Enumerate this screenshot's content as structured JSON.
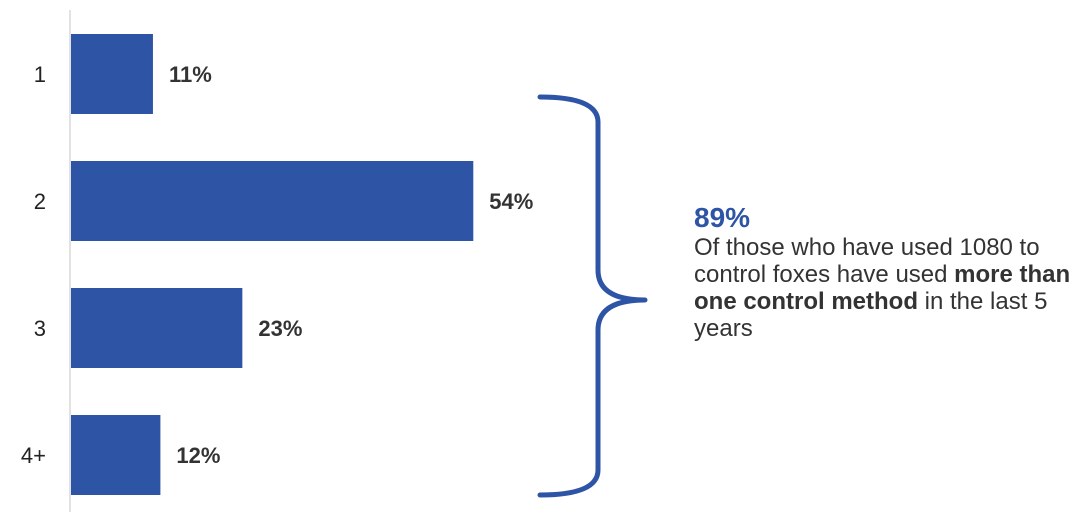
{
  "chart_data": {
    "type": "bar",
    "orientation": "horizontal",
    "categories": [
      "1",
      "2",
      "3",
      "4+"
    ],
    "values": [
      11,
      54,
      23,
      12
    ],
    "value_labels": [
      "11%",
      "54%",
      "23%",
      "12%"
    ],
    "xlim": [
      0,
      70
    ],
    "grid": false,
    "bar_color": "#2e54a6",
    "title": "",
    "xlabel": "",
    "ylabel": ""
  },
  "callout": {
    "headline": "89%",
    "text_1": "Of those who have used 1080 to control foxes have used ",
    "text_bold": "more than one control method",
    "text_2": " in the last 5 years",
    "accent_color": "#2e54a6"
  }
}
